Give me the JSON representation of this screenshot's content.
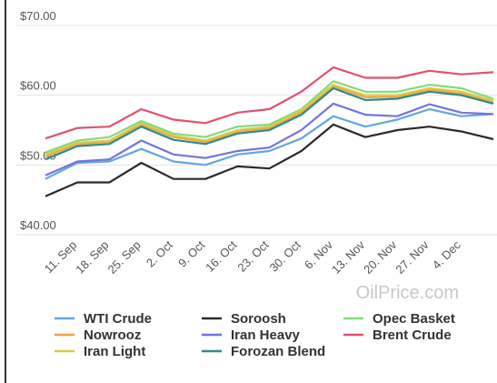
{
  "chart_data": {
    "type": "line",
    "categories": [
      null,
      "11. Sep",
      "18. Sep",
      "25. Sep",
      "2. Oct",
      "9. Oct",
      "16. Oct",
      "23. Oct",
      "30. Oct",
      "6. Nov",
      "13. Nov",
      "20. Nov",
      "27. Nov",
      "4. Dec",
      null
    ],
    "series": [
      {
        "name": "WTI Crude",
        "color": "#64a6e0",
        "values": [
          48.0,
          50.3,
          50.5,
          52.3,
          50.5,
          50.0,
          51.5,
          52.0,
          53.8,
          57.0,
          55.5,
          56.5,
          58.0,
          57.0,
          57.3
        ]
      },
      {
        "name": "Soroosh",
        "color": "#2b2b2b",
        "values": [
          45.5,
          47.5,
          47.5,
          50.3,
          48.0,
          48.0,
          49.8,
          49.5,
          52.0,
          55.8,
          54.0,
          55.0,
          55.5,
          54.8,
          53.7
        ]
      },
      {
        "name": "Opec Basket",
        "color": "#86d97a",
        "values": [
          51.8,
          53.5,
          54.0,
          56.3,
          54.5,
          54.0,
          55.5,
          55.8,
          58.0,
          62.0,
          60.5,
          60.5,
          61.5,
          61.0,
          59.5
        ]
      },
      {
        "name": "Nowrooz",
        "color": "#f0a04b",
        "values": [
          51.2,
          53.0,
          53.3,
          55.8,
          54.0,
          53.3,
          54.8,
          55.3,
          57.5,
          61.3,
          59.7,
          59.8,
          60.8,
          60.2,
          59.0
        ]
      },
      {
        "name": "Iran Heavy",
        "color": "#7474dc",
        "values": [
          48.5,
          50.5,
          50.8,
          53.5,
          51.5,
          51.0,
          52.0,
          52.5,
          55.0,
          58.8,
          57.2,
          57.0,
          58.7,
          57.5,
          57.3
        ]
      },
      {
        "name": "Brent Crude",
        "color": "#e2506f",
        "values": [
          53.8,
          55.3,
          55.5,
          58.0,
          56.5,
          56.0,
          57.5,
          58.0,
          60.5,
          64.0,
          62.5,
          62.5,
          63.5,
          63.0,
          63.3
        ]
      },
      {
        "name": "Iran Light",
        "color": "#d8cc45",
        "values": [
          51.5,
          53.2,
          53.5,
          56.0,
          54.2,
          53.5,
          55.0,
          55.5,
          57.8,
          61.5,
          60.0,
          60.0,
          61.0,
          60.5,
          59.2
        ]
      },
      {
        "name": "Forozan Blend",
        "color": "#2f8c8a",
        "values": [
          50.8,
          52.7,
          53.0,
          55.5,
          53.6,
          53.0,
          54.5,
          55.0,
          57.2,
          61.0,
          59.3,
          59.5,
          60.5,
          60.0,
          58.8
        ]
      }
    ],
    "ylim": [
      40,
      70
    ],
    "yticks": [
      {
        "value": 40,
        "label": "$40.00"
      },
      {
        "value": 50,
        "label": "$50.00"
      },
      {
        "value": 60,
        "label": "$60.00"
      },
      {
        "value": 70,
        "label": "$70.00"
      }
    ],
    "grid": true,
    "watermark": "OilPrice.com"
  }
}
